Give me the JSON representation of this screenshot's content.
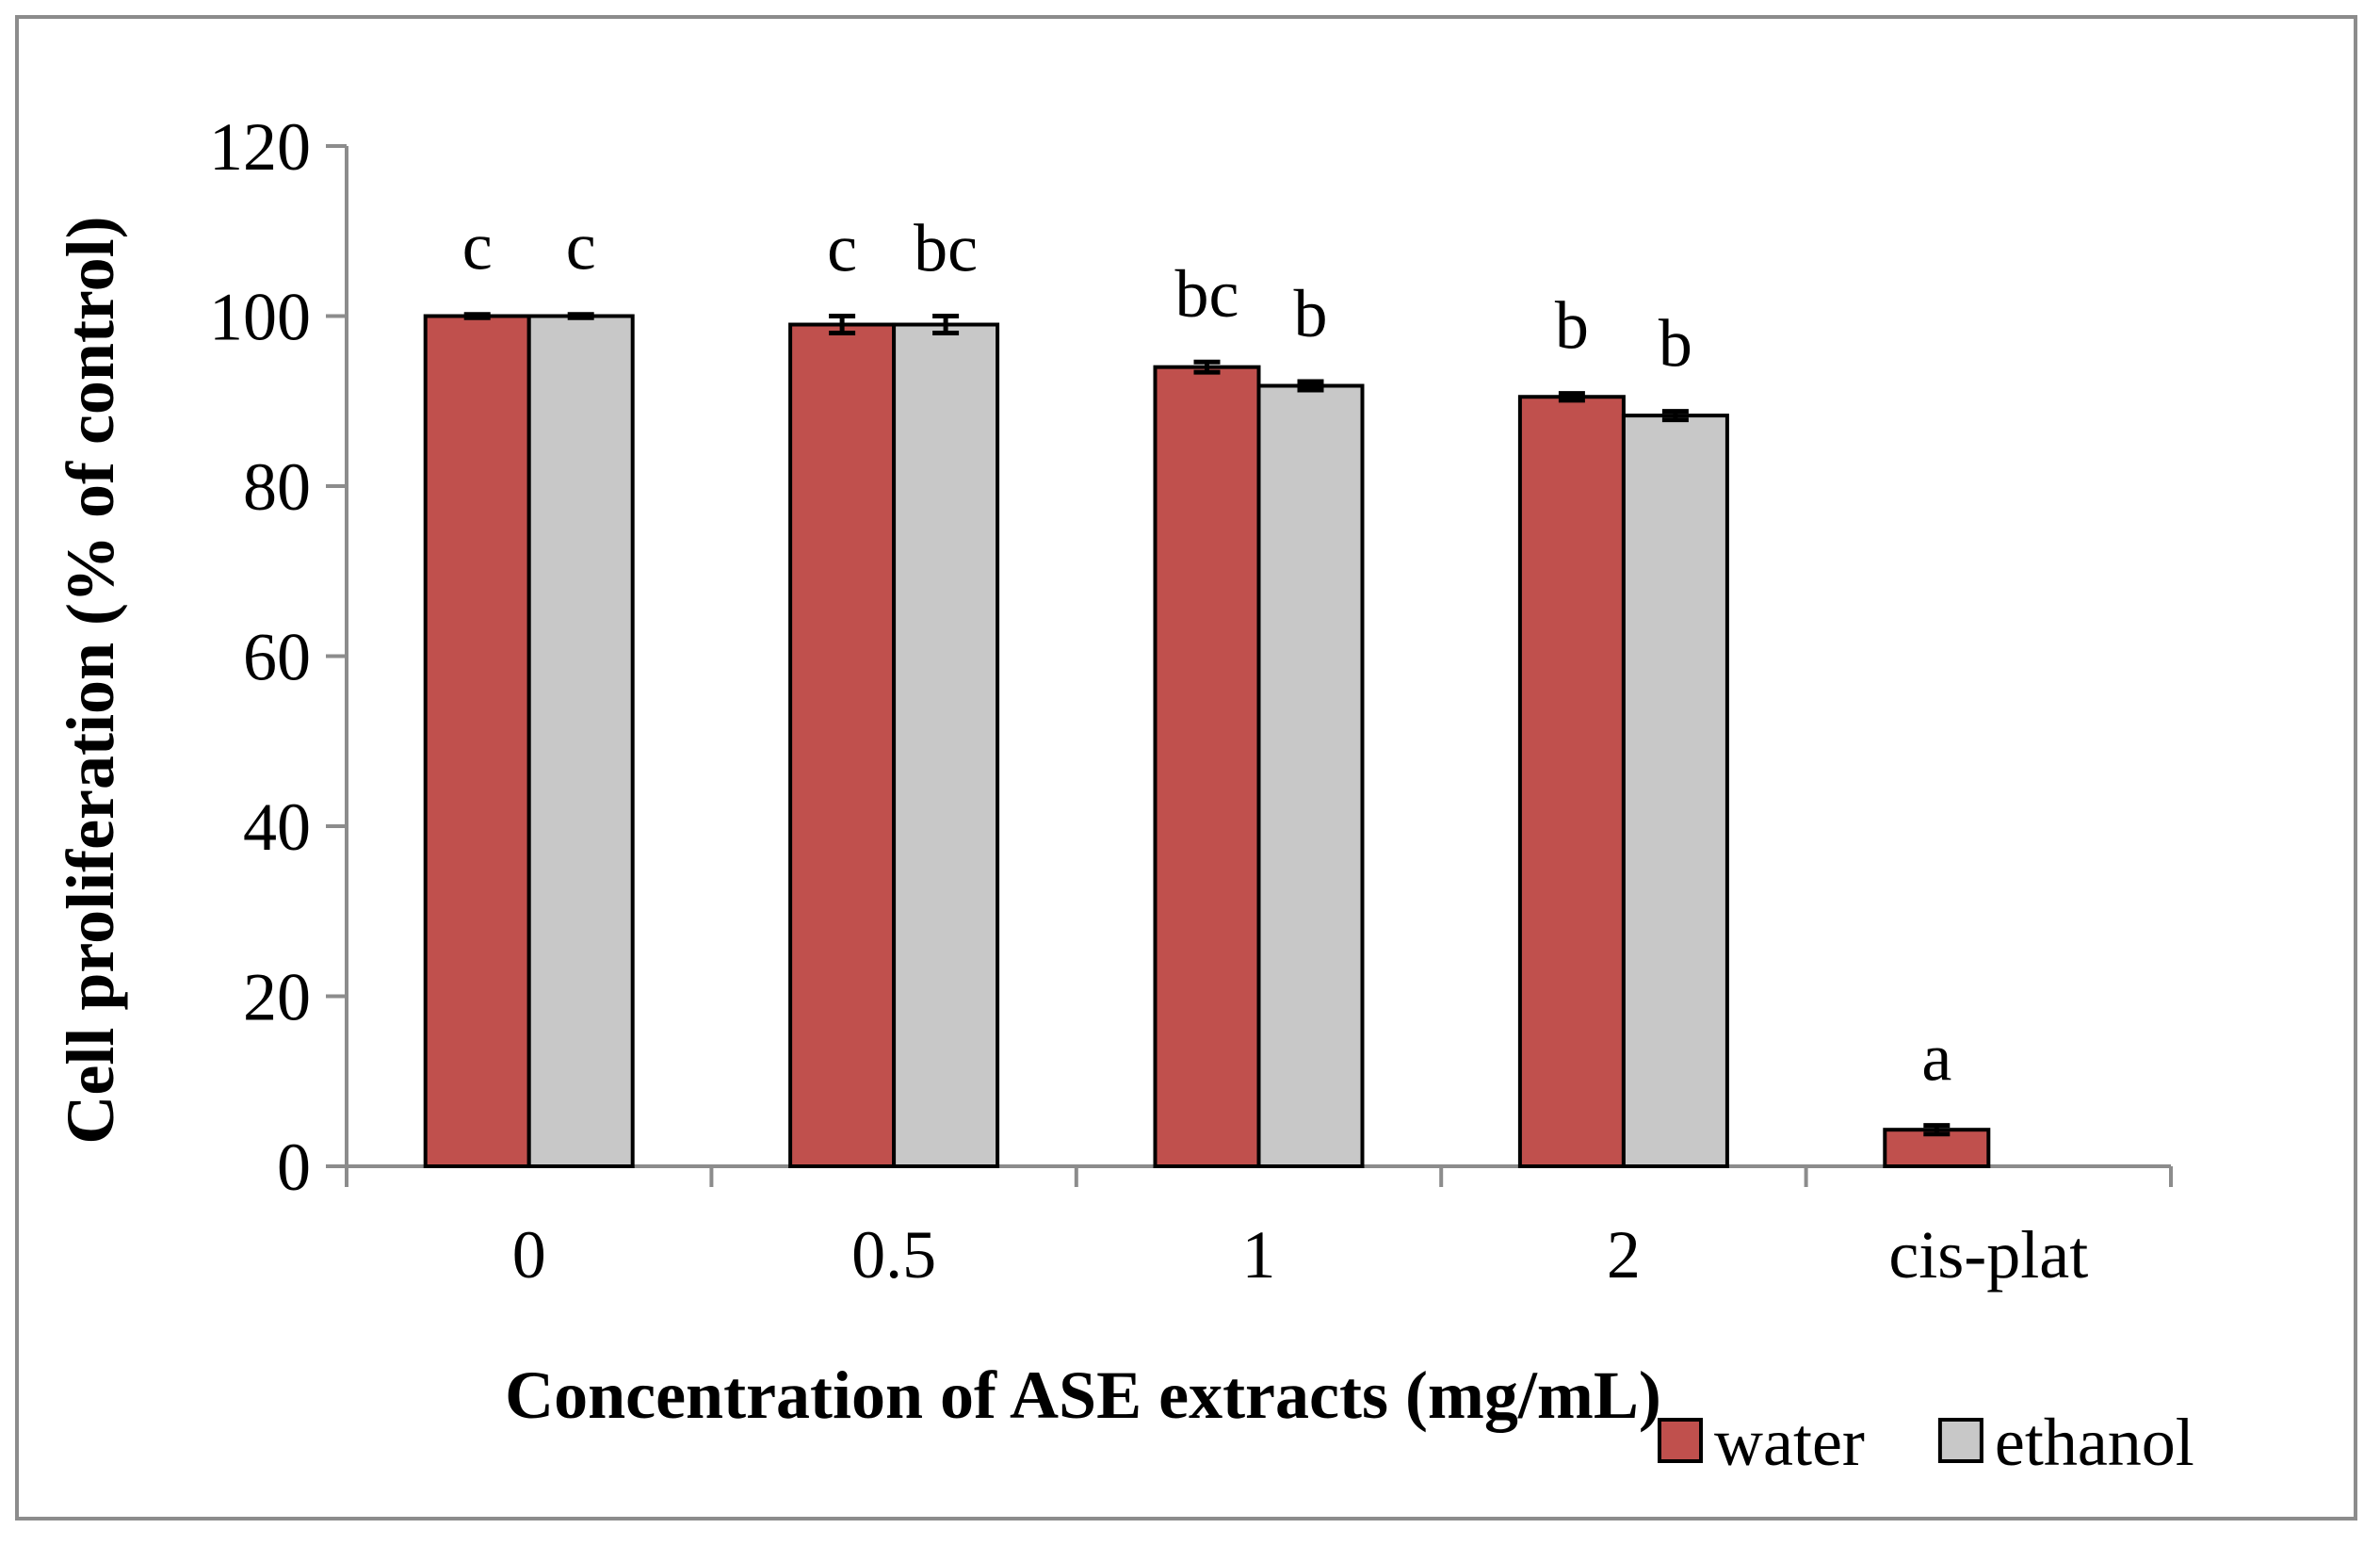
{
  "chart_data": {
    "type": "bar",
    "title": "",
    "xlabel": "Concentration of ASE extracts (mg/mL)",
    "ylabel": "Cell proliferation (% of control)",
    "ylim": [
      0,
      120
    ],
    "yticks": [
      0,
      20,
      40,
      60,
      80,
      100,
      120
    ],
    "ytick_labels": [
      "0",
      "20",
      "40",
      "60",
      "80",
      "100",
      "120"
    ],
    "categories": [
      "0",
      "0.5",
      "1",
      "2",
      "cis-plat"
    ],
    "grid": false,
    "legend_position": "bottom-right",
    "series": [
      {
        "name": "water",
        "color": "#c0504d",
        "values": [
          100,
          99,
          94,
          90.5,
          4.3
        ],
        "errors": [
          0.2,
          1.0,
          0.6,
          0.4,
          0.5
        ],
        "labels": [
          "c",
          "c",
          "bc",
          "b",
          "a"
        ]
      },
      {
        "name": "ethanol",
        "color": "#c8c8c8",
        "values": [
          100,
          99,
          91.8,
          88.3,
          null
        ],
        "errors": [
          0.2,
          1.0,
          0.5,
          0.5,
          null
        ],
        "labels": [
          "c",
          "bc",
          "b",
          "b",
          null
        ]
      }
    ]
  }
}
